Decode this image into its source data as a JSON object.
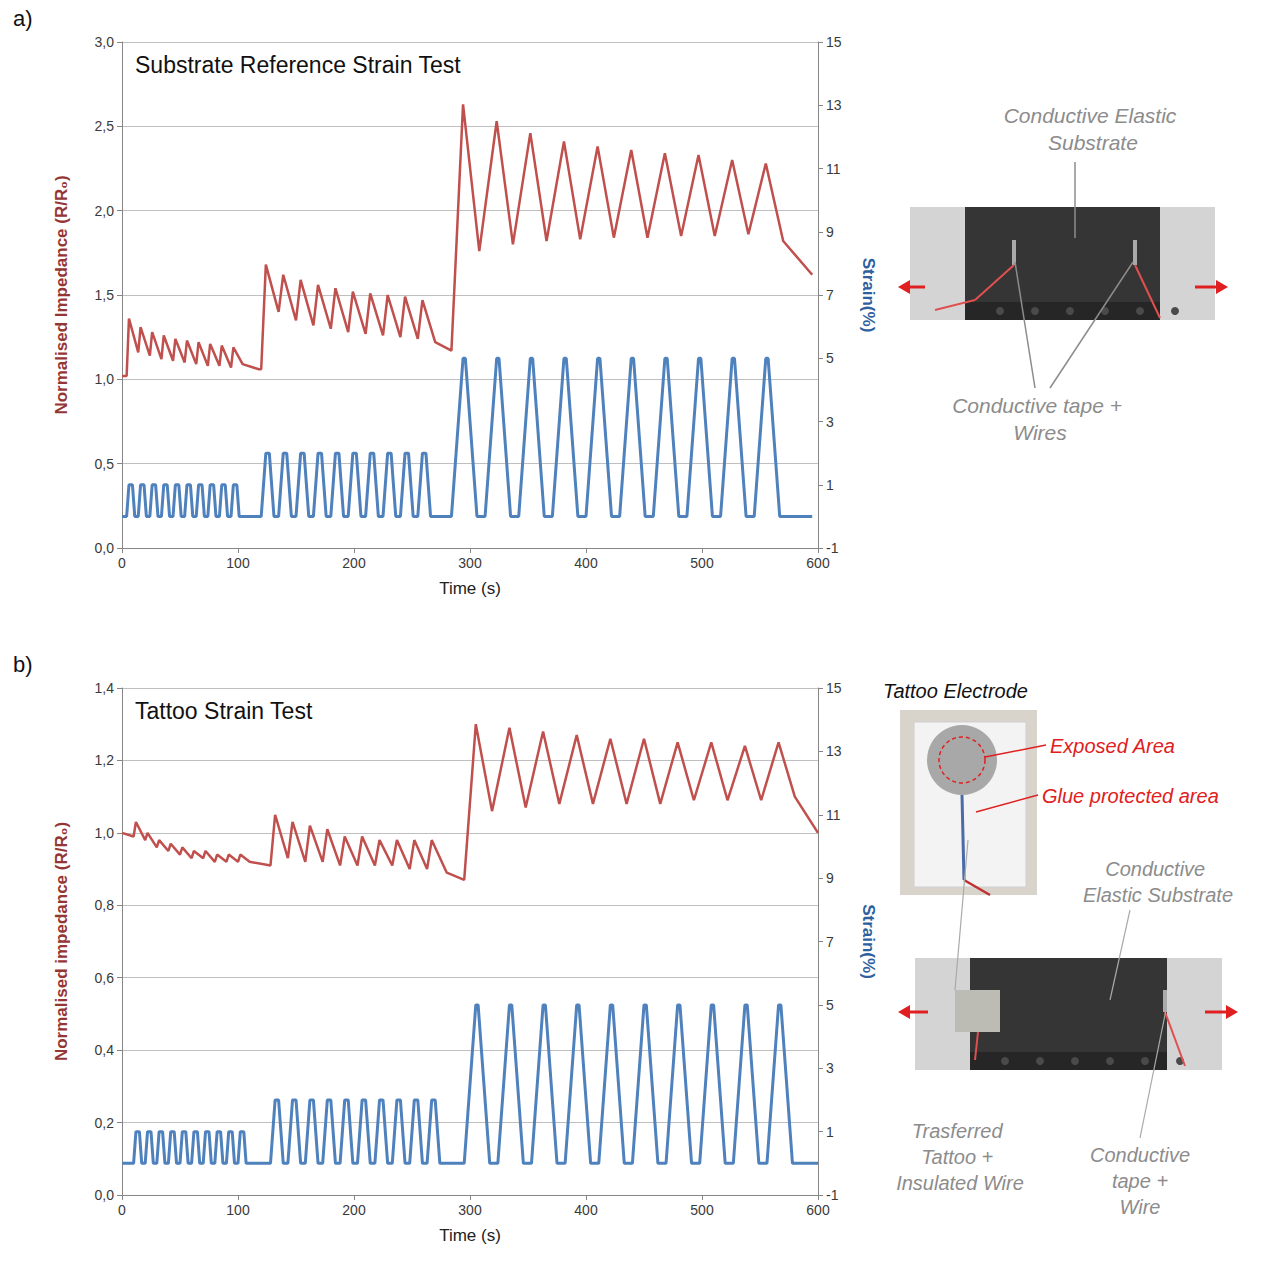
{
  "chart_data": [
    {
      "type": "line",
      "label": "a)",
      "title": "Substrate Reference Strain Test",
      "x_label": "Time (s)",
      "y_label": "Normalised Impedance (R/R₀)",
      "y2_label": "Strain(%)",
      "xlim": [
        0,
        600
      ],
      "xticks": [
        0,
        100,
        200,
        300,
        400,
        500,
        600
      ],
      "ylim": [
        0,
        3
      ],
      "yticks": [
        {
          "value": 0,
          "label": "0,0"
        },
        {
          "value": 0.5,
          "label": "0,5"
        },
        {
          "value": 1,
          "label": "1,0"
        },
        {
          "value": 1.5,
          "label": "1,5"
        },
        {
          "value": 2,
          "label": "2,0"
        },
        {
          "value": 2.5,
          "label": "2,5"
        },
        {
          "value": 3,
          "label": "3,0"
        }
      ],
      "y2lim": [
        -1,
        15
      ],
      "y2ticks": [
        -1,
        1,
        3,
        5,
        7,
        9,
        11,
        13,
        15
      ],
      "grid": true,
      "annotations": [
        "Conductive Elastic Substrate",
        "Conductive tape + Wires"
      ],
      "series": [
        {
          "color": "#c0504d",
          "axis": "y",
          "x": [
            0,
            4,
            6,
            14,
            16,
            24,
            26,
            34,
            36,
            44,
            46,
            54,
            56,
            64,
            66,
            74,
            76,
            84,
            86,
            94,
            96,
            104,
            118,
            120,
            124,
            135,
            139,
            150,
            154,
            165,
            169,
            180,
            184,
            195,
            199,
            210,
            214,
            225,
            229,
            240,
            244,
            255,
            259,
            270,
            284,
            294,
            308,
            323,
            337,
            352,
            366,
            381,
            395,
            410,
            424,
            439,
            453,
            468,
            482,
            497,
            511,
            526,
            540,
            555,
            570,
            595
          ],
          "values": [
            1.02,
            1.02,
            1.36,
            1.16,
            1.31,
            1.14,
            1.28,
            1.12,
            1.26,
            1.11,
            1.24,
            1.1,
            1.23,
            1.09,
            1.22,
            1.08,
            1.21,
            1.08,
            1.2,
            1.07,
            1.19,
            1.09,
            1.06,
            1.06,
            1.68,
            1.4,
            1.62,
            1.35,
            1.59,
            1.32,
            1.56,
            1.3,
            1.54,
            1.28,
            1.52,
            1.27,
            1.51,
            1.26,
            1.5,
            1.25,
            1.49,
            1.24,
            1.47,
            1.22,
            1.17,
            2.63,
            1.76,
            2.53,
            1.8,
            2.46,
            1.82,
            2.41,
            1.83,
            2.38,
            1.84,
            2.36,
            1.84,
            2.34,
            1.85,
            2.33,
            1.85,
            2.3,
            1.86,
            2.28,
            1.82,
            1.62
          ]
        },
        {
          "color": "#4f81bd",
          "axis": "y2",
          "x": [
            0,
            4,
            6,
            9,
            11,
            14,
            16,
            19,
            21,
            24,
            26,
            29,
            31,
            34,
            36,
            39,
            41,
            44,
            46,
            49,
            51,
            54,
            56,
            59,
            61,
            64,
            66,
            69,
            71,
            74,
            76,
            79,
            81,
            84,
            86,
            89,
            91,
            94,
            96,
            99,
            101,
            120,
            124,
            127,
            131,
            135,
            139,
            142,
            146,
            150,
            154,
            157,
            161,
            165,
            169,
            172,
            176,
            180,
            184,
            187,
            191,
            195,
            199,
            202,
            206,
            210,
            214,
            217,
            221,
            225,
            229,
            232,
            236,
            240,
            244,
            247,
            251,
            255,
            259,
            262,
            266,
            284,
            294,
            296,
            306,
            313,
            323,
            325,
            335,
            342,
            352,
            354,
            364,
            371,
            381,
            383,
            393,
            400,
            410,
            412,
            422,
            429,
            439,
            441,
            451,
            458,
            468,
            470,
            480,
            487,
            497,
            499,
            509,
            516,
            526,
            528,
            538,
            545,
            555,
            557,
            567,
            595
          ],
          "values": [
            0,
            0,
            1,
            1,
            0,
            0,
            1,
            1,
            0,
            0,
            1,
            1,
            0,
            0,
            1,
            1,
            0,
            0,
            1,
            1,
            0,
            0,
            1,
            1,
            0,
            0,
            1,
            1,
            0,
            0,
            1,
            1,
            0,
            0,
            1,
            1,
            0,
            0,
            1,
            1,
            0,
            0,
            2,
            2,
            0,
            0,
            2,
            2,
            0,
            0,
            2,
            2,
            0,
            0,
            2,
            2,
            0,
            0,
            2,
            2,
            0,
            0,
            2,
            2,
            0,
            0,
            2,
            2,
            0,
            0,
            2,
            2,
            0,
            0,
            2,
            2,
            0,
            0,
            2,
            2,
            0,
            0,
            5,
            5,
            0,
            0,
            5,
            5,
            0,
            0,
            5,
            5,
            0,
            0,
            5,
            5,
            0,
            0,
            5,
            5,
            0,
            0,
            5,
            5,
            0,
            0,
            5,
            5,
            0,
            0,
            5,
            5,
            0,
            0,
            5,
            5,
            0,
            0,
            5,
            5,
            0,
            0
          ]
        }
      ]
    },
    {
      "type": "line",
      "label": "b)",
      "title": "Tattoo Strain Test",
      "x_label": "Time (s)",
      "y_label": "Normalised impedance (R/R₀)",
      "y2_label": "Strain(%)",
      "xlim": [
        0,
        600
      ],
      "xticks": [
        0,
        100,
        200,
        300,
        400,
        500,
        600
      ],
      "ylim": [
        0,
        1.4
      ],
      "yticks": [
        {
          "value": 0,
          "label": "0,0"
        },
        {
          "value": 0.2,
          "label": "0,2"
        },
        {
          "value": 0.4,
          "label": "0,4"
        },
        {
          "value": 0.6,
          "label": "0,6"
        },
        {
          "value": 0.8,
          "label": "0,8"
        },
        {
          "value": 1,
          "label": "1,0"
        },
        {
          "value": 1.2,
          "label": "1,2"
        },
        {
          "value": 1.4,
          "label": "1,4"
        }
      ],
      "y2lim": [
        -1,
        15
      ],
      "y2ticks": [
        -1,
        1,
        3,
        5,
        7,
        9,
        11,
        13,
        15
      ],
      "grid": true,
      "annotations": [
        "Tattoo Electrode",
        "Exposed Area",
        "Glue protected area",
        "Conductive Elastic Substrate",
        "Trasferred Tattoo + Insulated Wire",
        "Conductive tape + Wire"
      ],
      "series": [
        {
          "color": "#c0504d",
          "axis": "y",
          "x": [
            0,
            10,
            12,
            20,
            22,
            30,
            32,
            40,
            42,
            50,
            52,
            60,
            62,
            70,
            72,
            80,
            82,
            90,
            92,
            100,
            102,
            110,
            128,
            132,
            143,
            147,
            158,
            162,
            173,
            177,
            188,
            192,
            203,
            207,
            218,
            222,
            233,
            237,
            248,
            252,
            263,
            267,
            280,
            295,
            305,
            319,
            334,
            348,
            363,
            377,
            392,
            406,
            421,
            435,
            450,
            464,
            479,
            493,
            508,
            522,
            537,
            551,
            566,
            580,
            600
          ],
          "values": [
            1.0,
            0.99,
            1.03,
            0.98,
            1.0,
            0.96,
            0.98,
            0.95,
            0.97,
            0.94,
            0.96,
            0.93,
            0.95,
            0.93,
            0.95,
            0.92,
            0.94,
            0.92,
            0.94,
            0.92,
            0.94,
            0.92,
            0.91,
            1.05,
            0.93,
            1.03,
            0.92,
            1.02,
            0.92,
            1.01,
            0.91,
            0.99,
            0.91,
            0.99,
            0.91,
            0.98,
            0.91,
            0.98,
            0.9,
            0.98,
            0.9,
            0.98,
            0.89,
            0.87,
            1.3,
            1.06,
            1.29,
            1.07,
            1.28,
            1.08,
            1.27,
            1.08,
            1.26,
            1.08,
            1.26,
            1.08,
            1.25,
            1.09,
            1.25,
            1.09,
            1.24,
            1.09,
            1.25,
            1.1,
            1.0
          ]
        },
        {
          "color": "#4f81bd",
          "axis": "y2",
          "x": [
            0,
            10,
            12,
            15,
            17,
            20,
            22,
            25,
            27,
            30,
            32,
            35,
            37,
            40,
            42,
            45,
            47,
            50,
            52,
            55,
            57,
            60,
            62,
            65,
            67,
            70,
            72,
            75,
            77,
            80,
            82,
            85,
            87,
            90,
            92,
            95,
            97,
            100,
            102,
            105,
            107,
            128,
            132,
            135,
            139,
            143,
            147,
            150,
            154,
            158,
            162,
            165,
            169,
            173,
            177,
            180,
            184,
            188,
            192,
            195,
            199,
            203,
            207,
            210,
            214,
            218,
            222,
            225,
            229,
            233,
            237,
            240,
            244,
            248,
            252,
            255,
            259,
            263,
            267,
            270,
            274,
            295,
            305,
            307,
            317,
            324,
            334,
            336,
            346,
            353,
            363,
            365,
            375,
            382,
            392,
            394,
            404,
            411,
            421,
            423,
            433,
            440,
            450,
            452,
            462,
            469,
            479,
            481,
            491,
            498,
            508,
            510,
            520,
            527,
            537,
            539,
            549,
            556,
            566,
            568,
            578,
            600
          ],
          "values": [
            0,
            0,
            1,
            1,
            0,
            0,
            1,
            1,
            0,
            0,
            1,
            1,
            0,
            0,
            1,
            1,
            0,
            0,
            1,
            1,
            0,
            0,
            1,
            1,
            0,
            0,
            1,
            1,
            0,
            0,
            1,
            1,
            0,
            0,
            1,
            1,
            0,
            0,
            1,
            1,
            0,
            0,
            2,
            2,
            0,
            0,
            2,
            2,
            0,
            0,
            2,
            2,
            0,
            0,
            2,
            2,
            0,
            0,
            2,
            2,
            0,
            0,
            2,
            2,
            0,
            0,
            2,
            2,
            0,
            0,
            2,
            2,
            0,
            0,
            2,
            2,
            0,
            0,
            2,
            2,
            0,
            0,
            5,
            5,
            0,
            0,
            5,
            5,
            0,
            0,
            5,
            5,
            0,
            0,
            5,
            5,
            0,
            0,
            5,
            5,
            0,
            0,
            5,
            5,
            0,
            0,
            5,
            5,
            0,
            0,
            5,
            5,
            0,
            0,
            5,
            5,
            0,
            0,
            5,
            5,
            0,
            0
          ]
        }
      ]
    }
  ]
}
